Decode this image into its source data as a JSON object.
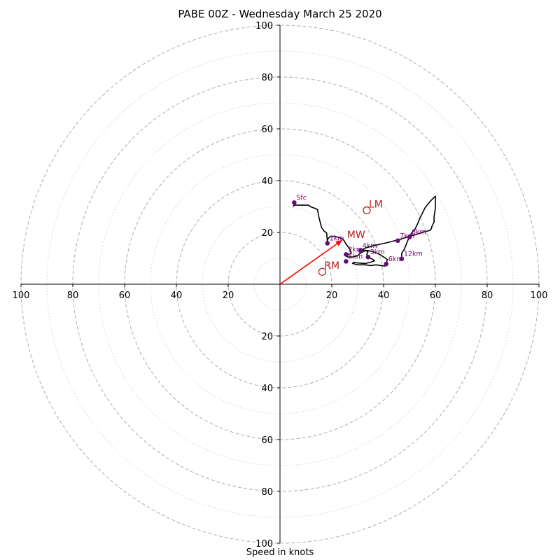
{
  "chart_data": {
    "type": "hodograph",
    "title": "PABE 00Z - Wednesday March 25 2020",
    "xlabel": "Speed in knots",
    "ring_labels": [
      "20",
      "40",
      "60",
      "80",
      "100"
    ],
    "ring_values": [
      20,
      40,
      60,
      80,
      100
    ],
    "minor_ring_values": [
      10,
      30,
      50,
      70,
      90
    ],
    "range_knots": 100,
    "grid": true,
    "trace": [
      [
        5,
        30
      ],
      [
        5.5,
        30.5
      ],
      [
        7,
        30.5
      ],
      [
        9,
        30.5
      ],
      [
        11,
        30.5
      ],
      [
        12,
        29.8
      ],
      [
        13,
        29.5
      ],
      [
        14.5,
        28.8
      ],
      [
        15,
        26
      ],
      [
        16,
        22
      ],
      [
        17,
        20.5
      ],
      [
        18,
        19.8
      ],
      [
        18.3,
        16.5
      ],
      [
        18.5,
        17.5
      ],
      [
        19.5,
        18.5
      ],
      [
        21,
        18.5
      ],
      [
        23,
        18
      ],
      [
        24.5,
        17.2
      ],
      [
        25.5,
        15.5
      ],
      [
        27,
        13.5
      ],
      [
        27.5,
        12
      ],
      [
        26.5,
        11.5
      ],
      [
        25.5,
        11
      ],
      [
        26,
        10.5
      ],
      [
        28,
        10.5
      ],
      [
        30,
        11
      ],
      [
        31,
        12
      ],
      [
        32,
        12.5
      ],
      [
        33,
        13
      ],
      [
        34,
        12.5
      ],
      [
        33.5,
        11.5
      ],
      [
        34,
        10.5
      ],
      [
        35,
        10
      ],
      [
        36,
        9.5
      ],
      [
        36.5,
        9
      ],
      [
        35,
        8.5
      ],
      [
        33,
        8
      ],
      [
        30,
        8.2
      ],
      [
        28.5,
        8.5
      ],
      [
        28,
        8
      ],
      [
        30,
        7.5
      ],
      [
        33,
        7.5
      ],
      [
        35,
        7.2
      ],
      [
        37,
        7.5
      ],
      [
        39,
        7.2
      ],
      [
        40.5,
        7
      ],
      [
        41,
        8
      ],
      [
        41.5,
        9.5
      ],
      [
        40,
        10.5
      ],
      [
        38.5,
        11.5
      ],
      [
        36,
        12.5
      ],
      [
        34,
        13
      ],
      [
        31.5,
        13.2
      ],
      [
        33,
        14
      ],
      [
        36,
        14.8
      ],
      [
        39,
        15.5
      ],
      [
        42,
        16.2
      ],
      [
        45,
        17
      ],
      [
        47,
        17.5
      ],
      [
        48.5,
        18
      ],
      [
        50,
        18.5
      ],
      [
        52,
        19
      ],
      [
        55,
        20
      ],
      [
        58,
        20.8
      ],
      [
        58.5,
        21.5
      ],
      [
        58.5,
        22
      ],
      [
        59.5,
        24
      ],
      [
        59.5,
        26
      ],
      [
        59.7,
        27.5
      ],
      [
        60,
        29.5
      ],
      [
        60,
        34
      ],
      [
        58,
        32
      ],
      [
        56,
        29.5
      ],
      [
        55,
        27.5
      ],
      [
        54,
        25.5
      ],
      [
        53,
        23
      ],
      [
        52,
        21
      ],
      [
        51,
        20
      ],
      [
        50,
        18.5
      ],
      [
        49,
        16
      ],
      [
        48,
        13.5
      ],
      [
        47,
        12
      ],
      [
        47,
        10
      ]
    ],
    "levels": [
      {
        "label": "Sfc",
        "u": 5.5,
        "v": 31.5
      },
      {
        "label": "1km",
        "u": 18.3,
        "v": 15.8
      },
      {
        "label": "2km",
        "u": 25.5,
        "v": 11.5
      },
      {
        "label": "3km",
        "u": 34,
        "v": 10.5
      },
      {
        "label": "4km",
        "u": 31,
        "v": 13
      },
      {
        "label": "5km",
        "u": 25.5,
        "v": 8.8
      },
      {
        "label": "6km",
        "u": 41,
        "v": 7.8
      },
      {
        "label": "7km",
        "u": 45.5,
        "v": 16.8
      },
      {
        "label": "8km",
        "u": 50,
        "v": 18.2
      },
      {
        "label": "12km",
        "u": 47,
        "v": 9.8
      }
    ],
    "mw": {
      "label": "MW",
      "u": 24,
      "v": 17
    },
    "lm": {
      "label": "LM",
      "u": 33.5,
      "v": 28.5
    },
    "rm": {
      "label": "RM",
      "u": 16.3,
      "v": 4.8
    },
    "colors": {
      "trace": "#000000",
      "level_point": "#6a0a78",
      "level_text": "#800080",
      "storm_motion": "#b22222",
      "mw_arrow": "#ff0000",
      "grid_major": "#b4b4b4",
      "grid_minor": "#d0d0d0"
    }
  }
}
